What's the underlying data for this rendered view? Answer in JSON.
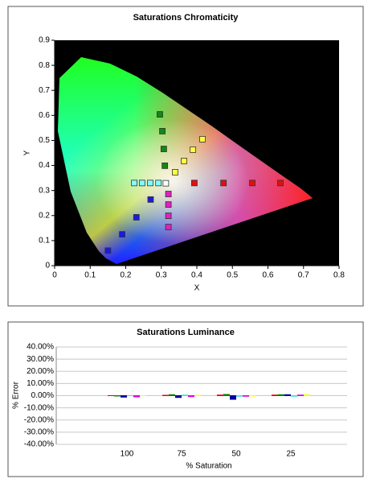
{
  "chart_data": [
    {
      "type": "scatter",
      "title": "Saturations Chromaticity",
      "x_label": "X",
      "y_label": "Y",
      "xlim": [
        0,
        0.8
      ],
      "ylim": [
        0,
        0.9
      ],
      "xticks": [
        0,
        0.1,
        0.2,
        0.3,
        0.4,
        0.5,
        0.6,
        0.7,
        0.8
      ],
      "yticks": [
        0,
        0.1,
        0.2,
        0.3,
        0.4,
        0.5,
        0.6,
        0.7,
        0.8,
        0.9
      ],
      "series": [
        {
          "color": "#e01010",
          "x": [
            0.635,
            0.556,
            0.475,
            0.393
          ],
          "y": [
            0.33,
            0.33,
            0.33,
            0.33
          ]
        },
        {
          "color": "#108a10",
          "x": [
            0.296,
            0.303,
            0.307,
            0.31
          ],
          "y": [
            0.604,
            0.537,
            0.466,
            0.399
          ]
        },
        {
          "color": "#1a1ae0",
          "x": [
            0.15,
            0.19,
            0.23,
            0.27
          ],
          "y": [
            0.06,
            0.125,
            0.193,
            0.264
          ]
        },
        {
          "color": "#80ffff",
          "x": [
            0.224,
            0.246,
            0.269,
            0.292
          ],
          "y": [
            0.33,
            0.33,
            0.33,
            0.33
          ]
        },
        {
          "color": "#e020c0",
          "x": [
            0.32,
            0.32,
            0.32,
            0.32
          ],
          "y": [
            0.286,
            0.244,
            0.199,
            0.154
          ]
        },
        {
          "color": "#ffff40",
          "x": [
            0.416,
            0.389,
            0.364,
            0.339
          ],
          "y": [
            0.505,
            0.463,
            0.418,
            0.373
          ]
        },
        {
          "color": "#ffffff",
          "x": [
            0.3127
          ],
          "y": [
            0.329
          ]
        }
      ]
    },
    {
      "type": "bar",
      "title": "Saturations Luminance",
      "x_label": "% Saturation",
      "y_label": "% Error",
      "categories": [
        "100",
        "75",
        "50",
        "25"
      ],
      "ylim": [
        -40,
        40
      ],
      "yticks": [
        {
          "value": 40,
          "label": "40.00%"
        },
        {
          "value": 30,
          "label": "30.00%"
        },
        {
          "value": 20,
          "label": "20.00%"
        },
        {
          "value": 10,
          "label": "10.00%"
        },
        {
          "value": 0,
          "label": "0.00%"
        },
        {
          "value": -10,
          "label": "-10.00%"
        },
        {
          "value": -20,
          "label": "-20.00%"
        },
        {
          "value": -30,
          "label": "-30.00%"
        },
        {
          "value": -40,
          "label": "-40.00%"
        }
      ],
      "series": [
        {
          "color": "#e00000",
          "values": [
            0,
            0.3,
            0.5,
            0.5
          ]
        },
        {
          "color": "#008000",
          "values": [
            -0.3,
            0.8,
            1.0,
            0.8
          ]
        },
        {
          "color": "#0000a0",
          "values": [
            -1.2,
            -1.5,
            -3.0,
            0.8
          ]
        },
        {
          "color": "#40e0e0",
          "values": [
            0,
            0.5,
            -0.5,
            -0.5
          ]
        },
        {
          "color": "#e000e0",
          "values": [
            -1.0,
            -0.8,
            -0.5,
            0.5
          ]
        },
        {
          "color": "#ffff00",
          "values": [
            0,
            0.3,
            -0.3,
            0.8
          ]
        }
      ]
    }
  ]
}
